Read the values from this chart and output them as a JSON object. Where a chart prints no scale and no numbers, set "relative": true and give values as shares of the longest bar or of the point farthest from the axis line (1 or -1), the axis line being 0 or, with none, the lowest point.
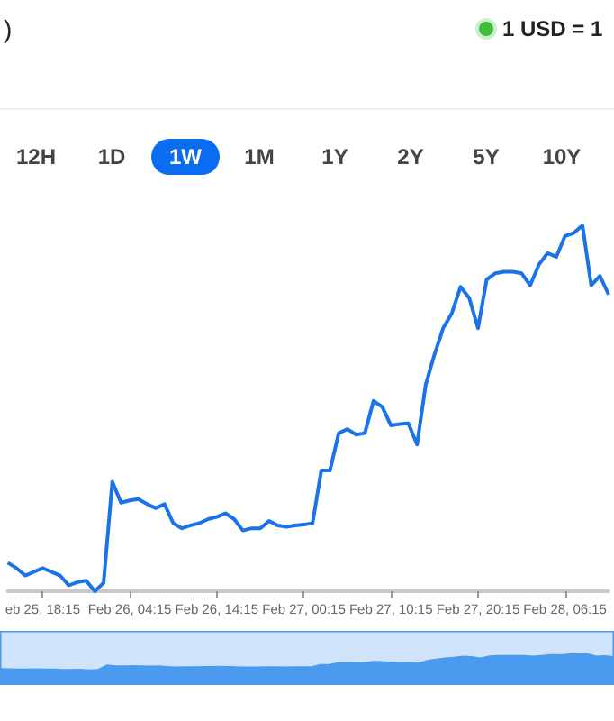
{
  "chart_data": {
    "type": "line",
    "relative": true,
    "marker": "none",
    "line_style": "solid",
    "annotations": [
      ")",
      "1 USD = 1",
      "12H",
      "1D",
      "1W",
      "1M",
      "1Y",
      "2Y",
      "5Y",
      "10Y"
    ],
    "categories": [
      null,
      null,
      null,
      null,
      "eb 25, 18:15",
      null,
      null,
      null,
      null,
      null,
      null,
      null,
      null,
      null,
      "Feb 26, 04:15",
      null,
      null,
      null,
      null,
      null,
      null,
      null,
      null,
      null,
      "Feb 26, 14:15",
      null,
      null,
      null,
      null,
      null,
      null,
      null,
      null,
      null,
      "Feb 27, 00:15",
      null,
      null,
      null,
      null,
      null,
      null,
      null,
      null,
      null,
      "Feb 27, 10:15",
      null,
      null,
      null,
      null,
      null,
      null,
      null,
      null,
      null,
      "Feb 27, 20:15",
      null,
      null,
      null,
      null,
      null,
      null,
      null,
      null,
      null,
      "Feb 28, 06:15",
      null,
      null,
      null,
      null,
      null
    ],
    "series": [
      {
        "color": "#1a73e8",
        "values": [
          0.078,
          0.063,
          0.043,
          0.053,
          0.063,
          0.053,
          0.043,
          0.016,
          0.025,
          0.029,
          0,
          0.023,
          0.299,
          0.242,
          0.248,
          0.252,
          0.238,
          0.227,
          0.238,
          0.186,
          0.172,
          0.18,
          0.186,
          0.197,
          0.203,
          0.213,
          0.197,
          0.166,
          0.172,
          0.172,
          0.192,
          0.18,
          0.176,
          0.18,
          0.182,
          0.186,
          0.33,
          0.33,
          0.432,
          0.443,
          0.428,
          0.432,
          0.52,
          0.504,
          0.453,
          0.457,
          0.459,
          0.401,
          0.565,
          0.647,
          0.719,
          0.76,
          0.832,
          0.801,
          0.719,
          0.852,
          0.869,
          0.873,
          0.873,
          0.869,
          0.836,
          0.893,
          0.924,
          0.914,
          0.971,
          0.979,
          1,
          0.836,
          0.862,
          0.811
        ]
      }
    ]
  }
}
